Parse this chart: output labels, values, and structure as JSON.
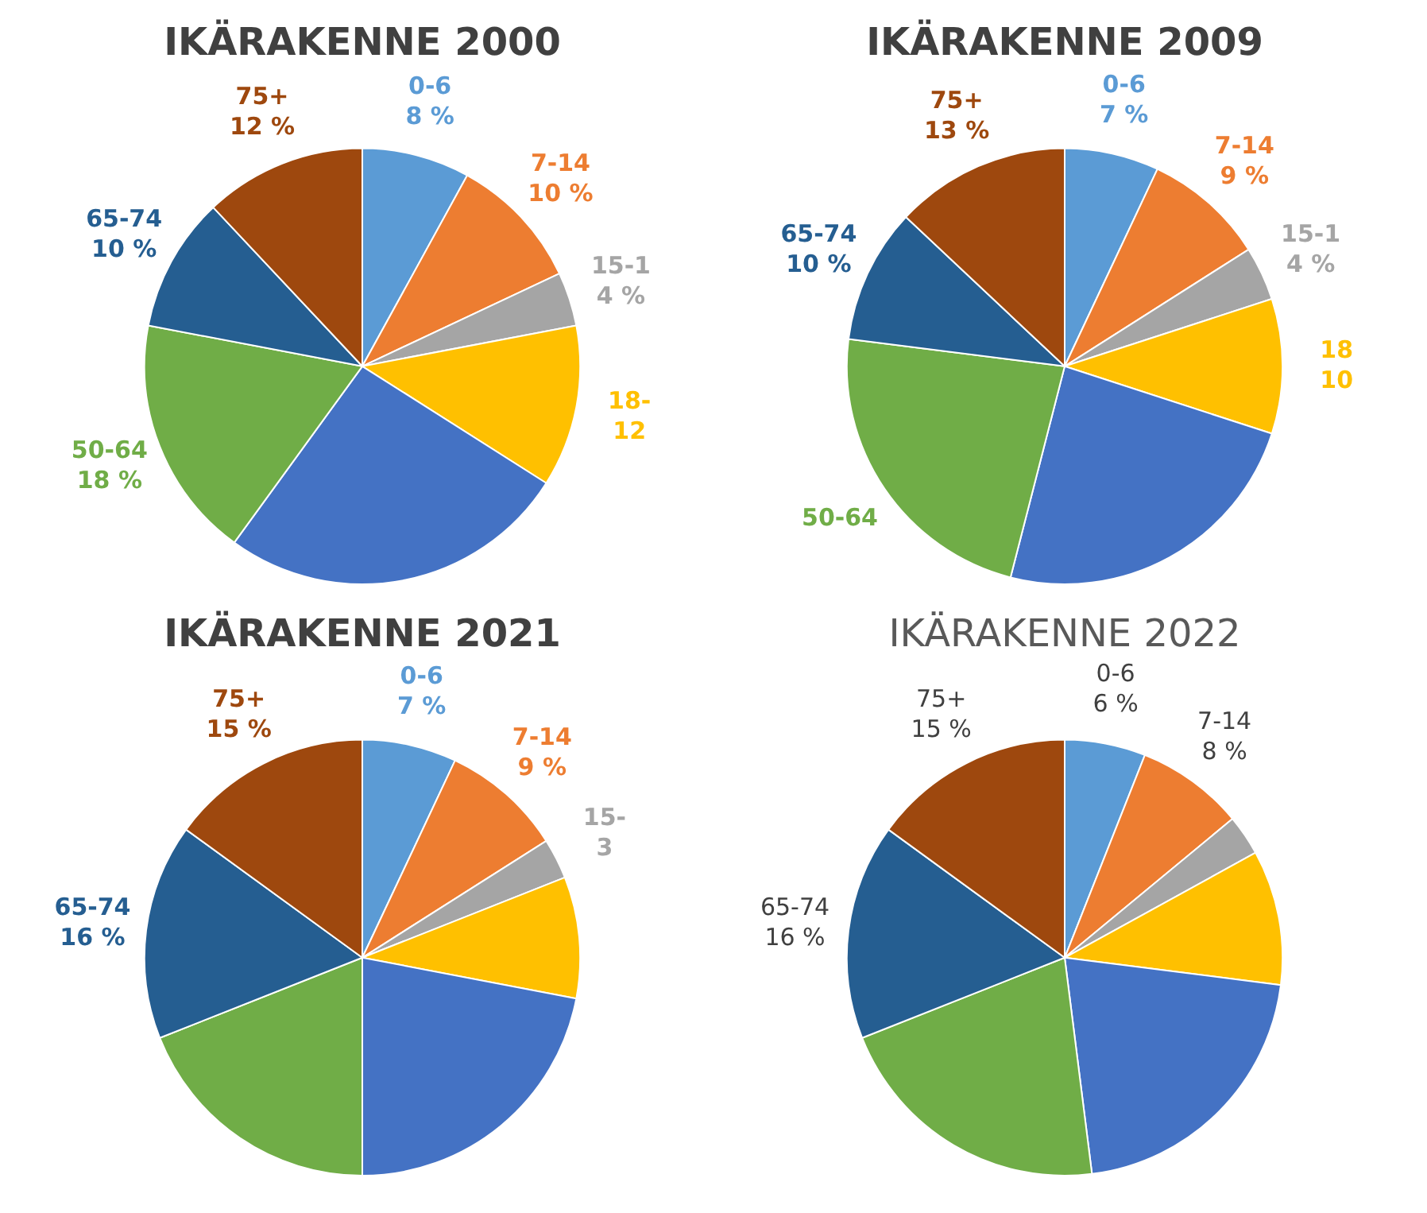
{
  "chart_data": [
    {
      "type": "pie",
      "title": "IKÄRAKENNE 2000",
      "categories": [
        "0-6",
        "7-14",
        "15-1",
        "18-",
        null,
        "50-64",
        "65-74",
        "75+"
      ],
      "values": [
        8,
        10,
        4,
        12,
        26,
        18,
        10,
        12
      ],
      "colors": [
        "#5b9bd5",
        "#ed7d31",
        "#a5a5a5",
        "#ffc000",
        "#4472c4",
        "#70ad47",
        "#255e91",
        "#9e480e"
      ],
      "value_labels": [
        "8 %",
        "10 %",
        "4 %",
        "12",
        null,
        "18 %",
        "10 %",
        "12 %"
      ]
    },
    {
      "type": "pie",
      "title": "IKÄRAKENNE 2009",
      "categories": [
        "0-6",
        "7-14",
        "15-1",
        "18",
        null,
        "50-64",
        "65-74",
        "75+"
      ],
      "values": [
        7,
        9,
        4,
        10,
        24,
        23,
        10,
        13
      ],
      "colors": [
        "#5b9bd5",
        "#ed7d31",
        "#a5a5a5",
        "#ffc000",
        "#4472c4",
        "#70ad47",
        "#255e91",
        "#9e480e"
      ],
      "value_labels": [
        "7 %",
        "9 %",
        "4 %",
        "10",
        null,
        null,
        "10 %",
        "13 %"
      ]
    },
    {
      "type": "pie",
      "title": "IKÄRAKENNE 2021",
      "categories": [
        "0-6",
        "7-14",
        "15-",
        null,
        null,
        null,
        "65-74",
        "75+"
      ],
      "values": [
        7,
        9,
        3,
        9,
        22,
        19,
        16,
        15
      ],
      "colors": [
        "#5b9bd5",
        "#ed7d31",
        "#a5a5a5",
        "#ffc000",
        "#4472c4",
        "#70ad47",
        "#255e91",
        "#9e480e"
      ],
      "value_labels": [
        "7 %",
        "9 %",
        "3",
        null,
        null,
        null,
        "16 %",
        "15 %"
      ]
    },
    {
      "type": "pie",
      "title": "IKÄRAKENNE 2022",
      "categories": [
        "0-6",
        "7-14",
        null,
        null,
        null,
        null,
        "65-74",
        "75+"
      ],
      "values": [
        6,
        8,
        3,
        10,
        21,
        21,
        16,
        15
      ],
      "colors": [
        "#5b9bd5",
        "#ed7d31",
        "#a5a5a5",
        "#ffc000",
        "#4472c4",
        "#70ad47",
        "#255e91",
        "#9e480e"
      ],
      "value_labels": [
        "6 %",
        "8 %",
        null,
        null,
        null,
        null,
        "16 %",
        "15 %"
      ]
    }
  ]
}
